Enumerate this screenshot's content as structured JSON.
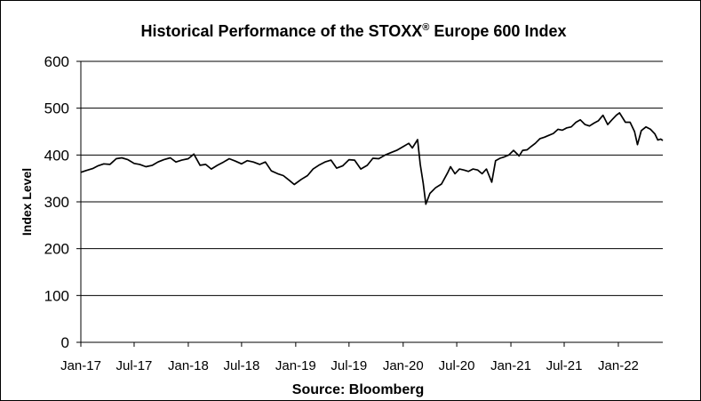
{
  "chart_data": {
    "type": "line",
    "title_main": "Historical  Performance of the STOXX",
    "title_reg": "®",
    "title_rest": " Europe 600 Index",
    "ylabel": "Index Level",
    "source": "Source: Bloomberg",
    "ylim": [
      0,
      600
    ],
    "yticks": [
      "0",
      "100",
      "200",
      "300",
      "400",
      "500",
      "600"
    ],
    "xlim": [
      "2017-01",
      "2022-06"
    ],
    "xticks": [
      {
        "label": "Jan-17",
        "date": "2017-01"
      },
      {
        "label": "Jul-17",
        "date": "2017-07"
      },
      {
        "label": "Jan-18",
        "date": "2018-01"
      },
      {
        "label": "Jul-18",
        "date": "2018-07"
      },
      {
        "label": "Jan-19",
        "date": "2019-01"
      },
      {
        "label": "Jul-19",
        "date": "2019-07"
      },
      {
        "label": "Jan-20",
        "date": "2020-01"
      },
      {
        "label": "Jul-20",
        "date": "2020-07"
      },
      {
        "label": "Jan-21",
        "date": "2021-01"
      },
      {
        "label": "Jul-21",
        "date": "2021-07"
      },
      {
        "label": "Jan-22",
        "date": "2022-01"
      }
    ],
    "grid": true,
    "legend": "none",
    "line_color": "#000000",
    "series": [
      {
        "points": [
          [
            "2017-01-01",
            363
          ],
          [
            "2017-01-20",
            367
          ],
          [
            "2017-02-10",
            371
          ],
          [
            "2017-03-01",
            377
          ],
          [
            "2017-03-20",
            381
          ],
          [
            "2017-04-10",
            380
          ],
          [
            "2017-05-01",
            392
          ],
          [
            "2017-05-20",
            394
          ],
          [
            "2017-06-10",
            390
          ],
          [
            "2017-07-01",
            382
          ],
          [
            "2017-07-20",
            380
          ],
          [
            "2017-08-10",
            375
          ],
          [
            "2017-09-01",
            378
          ],
          [
            "2017-09-20",
            385
          ],
          [
            "2017-10-10",
            390
          ],
          [
            "2017-11-01",
            394
          ],
          [
            "2017-11-20",
            385
          ],
          [
            "2017-12-10",
            389
          ],
          [
            "2018-01-01",
            392
          ],
          [
            "2018-01-20",
            402
          ],
          [
            "2018-02-10",
            378
          ],
          [
            "2018-03-01",
            380
          ],
          [
            "2018-03-20",
            370
          ],
          [
            "2018-04-10",
            378
          ],
          [
            "2018-05-01",
            385
          ],
          [
            "2018-05-20",
            392
          ],
          [
            "2018-06-10",
            387
          ],
          [
            "2018-07-01",
            381
          ],
          [
            "2018-07-20",
            388
          ],
          [
            "2018-08-10",
            385
          ],
          [
            "2018-09-01",
            380
          ],
          [
            "2018-09-20",
            385
          ],
          [
            "2018-10-10",
            366
          ],
          [
            "2018-11-01",
            360
          ],
          [
            "2018-11-20",
            356
          ],
          [
            "2018-12-10",
            346
          ],
          [
            "2018-12-27",
            337
          ],
          [
            "2019-01-20",
            348
          ],
          [
            "2019-02-10",
            356
          ],
          [
            "2019-03-01",
            370
          ],
          [
            "2019-03-20",
            378
          ],
          [
            "2019-04-10",
            385
          ],
          [
            "2019-05-01",
            389
          ],
          [
            "2019-05-20",
            372
          ],
          [
            "2019-06-10",
            377
          ],
          [
            "2019-07-01",
            390
          ],
          [
            "2019-07-20",
            389
          ],
          [
            "2019-08-10",
            370
          ],
          [
            "2019-09-01",
            378
          ],
          [
            "2019-09-20",
            393
          ],
          [
            "2019-10-10",
            392
          ],
          [
            "2019-11-01",
            400
          ],
          [
            "2019-11-20",
            405
          ],
          [
            "2019-12-10",
            410
          ],
          [
            "2020-01-01",
            418
          ],
          [
            "2020-01-20",
            425
          ],
          [
            "2020-02-01",
            415
          ],
          [
            "2020-02-19",
            433
          ],
          [
            "2020-02-28",
            380
          ],
          [
            "2020-03-09",
            340
          ],
          [
            "2020-03-18",
            295
          ],
          [
            "2020-04-01",
            318
          ],
          [
            "2020-04-20",
            330
          ],
          [
            "2020-05-10",
            338
          ],
          [
            "2020-06-01",
            363
          ],
          [
            "2020-06-10",
            375
          ],
          [
            "2020-06-25",
            360
          ],
          [
            "2020-07-10",
            370
          ],
          [
            "2020-07-25",
            368
          ],
          [
            "2020-08-10",
            365
          ],
          [
            "2020-08-25",
            370
          ],
          [
            "2020-09-10",
            368
          ],
          [
            "2020-09-25",
            360
          ],
          [
            "2020-10-10",
            370
          ],
          [
            "2020-10-28",
            342
          ],
          [
            "2020-11-10",
            388
          ],
          [
            "2020-11-25",
            393
          ],
          [
            "2020-12-10",
            396
          ],
          [
            "2020-12-25",
            400
          ],
          [
            "2021-01-10",
            410
          ],
          [
            "2021-01-29",
            398
          ],
          [
            "2021-02-10",
            410
          ],
          [
            "2021-02-25",
            411
          ],
          [
            "2021-03-10",
            418
          ],
          [
            "2021-03-25",
            425
          ],
          [
            "2021-04-10",
            435
          ],
          [
            "2021-04-25",
            438
          ],
          [
            "2021-05-10",
            442
          ],
          [
            "2021-05-25",
            446
          ],
          [
            "2021-06-10",
            455
          ],
          [
            "2021-06-25",
            453
          ],
          [
            "2021-07-10",
            458
          ],
          [
            "2021-07-25",
            460
          ],
          [
            "2021-08-10",
            470
          ],
          [
            "2021-08-25",
            475
          ],
          [
            "2021-09-10",
            465
          ],
          [
            "2021-09-25",
            462
          ],
          [
            "2021-10-10",
            468
          ],
          [
            "2021-10-25",
            473
          ],
          [
            "2021-11-10",
            485
          ],
          [
            "2021-11-26",
            465
          ],
          [
            "2021-12-10",
            475
          ],
          [
            "2021-12-25",
            485
          ],
          [
            "2022-01-05",
            490
          ],
          [
            "2022-01-25",
            470
          ],
          [
            "2022-02-10",
            470
          ],
          [
            "2022-02-25",
            450
          ],
          [
            "2022-03-07",
            422
          ],
          [
            "2022-03-20",
            452
          ],
          [
            "2022-04-05",
            460
          ],
          [
            "2022-04-20",
            455
          ],
          [
            "2022-05-05",
            445
          ],
          [
            "2022-05-15",
            432
          ],
          [
            "2022-05-25",
            434
          ],
          [
            "2022-06-01",
            431
          ]
        ]
      }
    ]
  }
}
